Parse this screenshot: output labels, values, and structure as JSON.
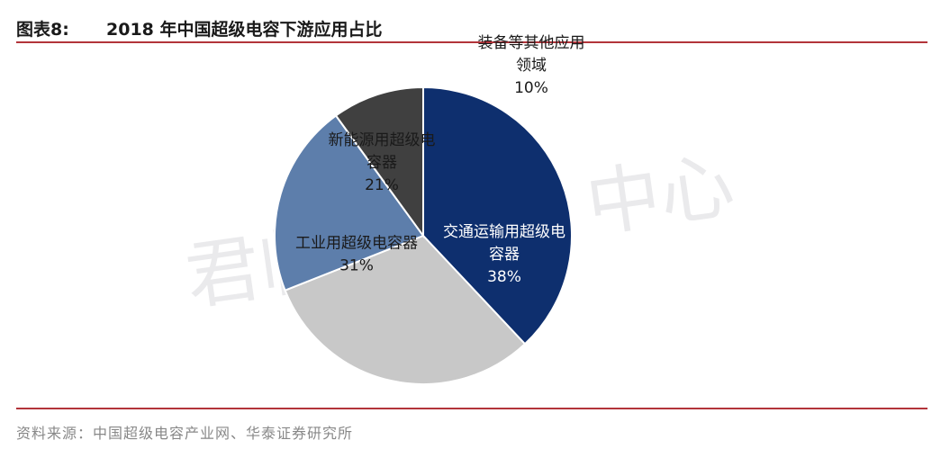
{
  "header": {
    "figure_number": "图表8:",
    "title": "2018 年中国超级电容下游应用占比"
  },
  "watermark": {
    "left_text": "君临研",
    "right_text": "中心"
  },
  "source": "资料来源：中国超级电容产业网、华泰证券研究所",
  "chart_data": {
    "type": "pie",
    "title": "2018 年中国超级电容下游应用占比",
    "start_angle_deg": 0,
    "direction": "clockwise",
    "slices": [
      {
        "label_lines": [
          "交通运输用超级电",
          "容器"
        ],
        "pct_label": "38%",
        "value": 38,
        "color": "#0e2f6e",
        "text_color": "#ffffff"
      },
      {
        "label_lines": [
          "工业用超级电容器"
        ],
        "pct_label": "31%",
        "value": 31,
        "color": "#c8c8c8",
        "text_color": "#1a1a1a"
      },
      {
        "label_lines": [
          "新能源用超级电",
          "容器"
        ],
        "pct_label": "21%",
        "value": 21,
        "color": "#5d7eab",
        "text_color": "#1a1a1a"
      },
      {
        "label_lines": [
          "装备等其他应用",
          "领域"
        ],
        "pct_label": "10%",
        "value": 10,
        "color": "#404040",
        "text_color": "#1a1a1a"
      }
    ]
  }
}
